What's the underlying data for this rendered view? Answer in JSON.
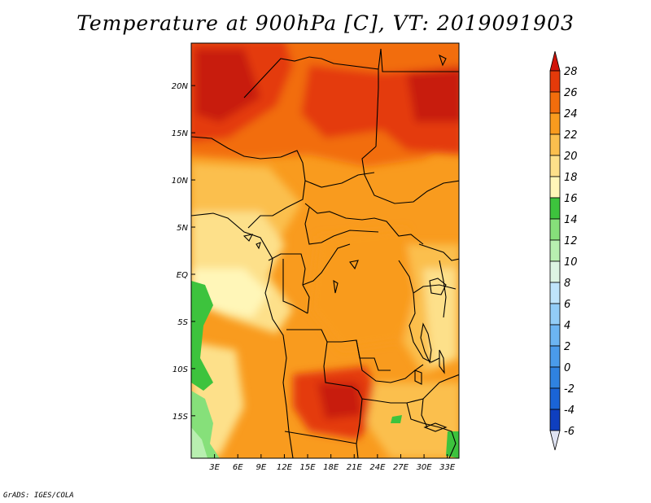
{
  "title": "Temperature at 900hPa [C], VT: 2019091903",
  "credit": "GrADS: IGES/COLA",
  "map": {
    "lon_range": [
      0,
      34.5
    ],
    "lat_range": [
      -19.5,
      24.5
    ],
    "lon_ticks": [
      {
        "value": 3,
        "label": "3E"
      },
      {
        "value": 6,
        "label": "6E"
      },
      {
        "value": 9,
        "label": "9E"
      },
      {
        "value": 12,
        "label": "12E"
      },
      {
        "value": 15,
        "label": "15E"
      },
      {
        "value": 18,
        "label": "18E"
      },
      {
        "value": 21,
        "label": "21E"
      },
      {
        "value": 24,
        "label": "24E"
      },
      {
        "value": 27,
        "label": "27E"
      },
      {
        "value": 30,
        "label": "30E"
      },
      {
        "value": 33,
        "label": "33E"
      }
    ],
    "lat_ticks": [
      {
        "value": 20,
        "label": "20N"
      },
      {
        "value": 15,
        "label": "15N"
      },
      {
        "value": 10,
        "label": "10N"
      },
      {
        "value": 5,
        "label": "5N"
      },
      {
        "value": 0,
        "label": "EQ"
      },
      {
        "value": -5,
        "label": "5S"
      },
      {
        "value": -10,
        "label": "10S"
      },
      {
        "value": -15,
        "label": "15S"
      }
    ]
  },
  "colorbar": {
    "levels": [
      -6,
      -4,
      -2,
      0,
      2,
      4,
      6,
      8,
      10,
      12,
      14,
      16,
      18,
      20,
      22,
      24,
      26,
      28
    ],
    "colors": [
      "#0b0c7e",
      "#0f3fbf",
      "#1a64d6",
      "#2f82e0",
      "#4a9bea",
      "#6cb5f2",
      "#92cdf7",
      "#bfe5fb",
      "#ddf5e3",
      "#b8efb0",
      "#86e07a",
      "#3dc33d",
      "#fff6b8",
      "#fde08a",
      "#fbbf4e",
      "#f99b1e",
      "#f26d0c",
      "#e43a0a",
      "#c81a08"
    ],
    "under_color": "#dfe3f2",
    "over_color": "#d1140a"
  }
}
